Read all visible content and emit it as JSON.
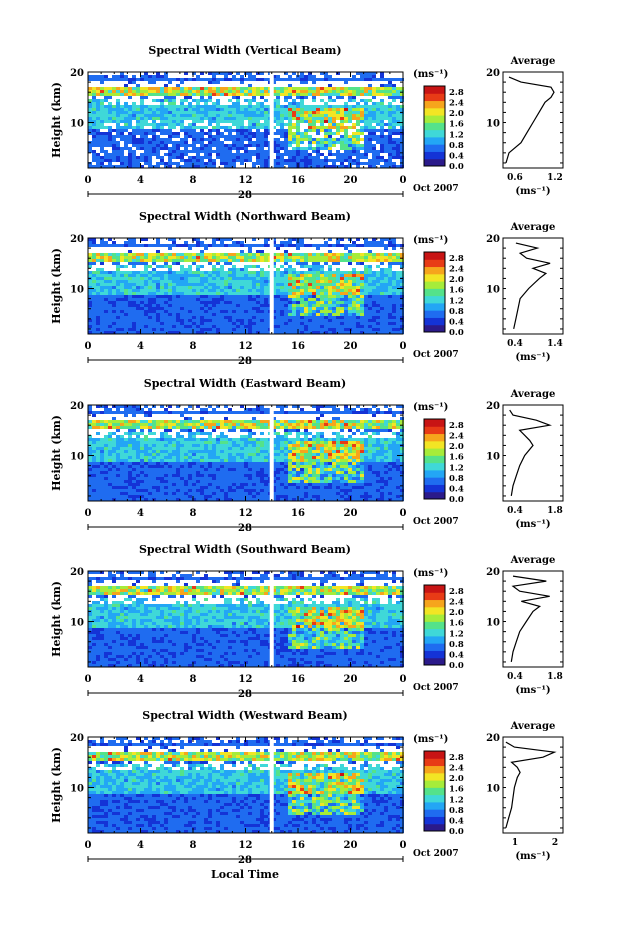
{
  "panels": [
    {
      "title": "Spectral Width (Vertical Beam)",
      "avg_xticks": [
        "0.6",
        "1.2"
      ]
    },
    {
      "title": "Spectral Width (Northward Beam)",
      "avg_xticks": [
        "0.4",
        "1.4"
      ]
    },
    {
      "title": "Spectral Width (Eastward Beam)",
      "avg_xticks": [
        "0.4",
        "1.8"
      ]
    },
    {
      "title": "Spectral Width (Southward Beam)",
      "avg_xticks": [
        "0.4",
        "1.8"
      ]
    },
    {
      "title": "Spectral Width (Westward Beam)",
      "avg_xticks": [
        "1",
        "2"
      ]
    }
  ],
  "common": {
    "ylabel": "Height (km)",
    "yticks": [
      "20",
      "10"
    ],
    "xticks": [
      "0",
      "4",
      "8",
      "12",
      "16",
      "20",
      "0"
    ],
    "day_label": "28",
    "month_label": "Oct 2007",
    "colorbar_unit": "(ms⁻¹)",
    "colorbar_ticks": [
      "2.8",
      "2.4",
      "2.0",
      "1.6",
      "1.2",
      "0.8",
      "0.4",
      "0.0"
    ],
    "average_title": "Average",
    "average_unit": "(ms⁻¹)",
    "xlabel": "Local Time"
  },
  "colors": {
    "colormap": [
      "#2b1a8a",
      "#1433d6",
      "#1f6cf0",
      "#23a6f5",
      "#3fd8d8",
      "#54e28a",
      "#a6ec3a",
      "#f2e524",
      "#f6a51c",
      "#e83b16",
      "#c81414"
    ],
    "gap": "#ffffff"
  },
  "chart_data": [
    {
      "type": "heatmap",
      "title": "Spectral Width (Vertical Beam)",
      "xlabel": "",
      "ylabel": "Height (km)",
      "xlim": [
        0,
        24
      ],
      "ylim": [
        1,
        20
      ],
      "colorbar_range": [
        0.0,
        3.0
      ],
      "data_gap_at_hour": 14,
      "average_profile": {
        "title": "Average",
        "unit": "(ms⁻¹)",
        "xlim": [
          0.4,
          1.4
        ],
        "height_km": [
          2,
          4,
          6,
          8,
          10,
          12,
          14,
          15,
          16,
          17,
          18,
          19
        ],
        "value": [
          0.45,
          0.5,
          0.7,
          0.8,
          0.9,
          1.0,
          1.1,
          1.2,
          1.25,
          1.2,
          0.7,
          0.5
        ]
      }
    },
    {
      "type": "heatmap",
      "title": "Spectral Width (Northward Beam)",
      "xlabel": "",
      "ylabel": "Height (km)",
      "xlim": [
        0,
        24
      ],
      "ylim": [
        1,
        20
      ],
      "colorbar_range": [
        0.0,
        3.0
      ],
      "data_gap_at_hour": 14,
      "average_profile": {
        "title": "Average",
        "unit": "(ms⁻¹)",
        "xlim": [
          0.2,
          1.6
        ],
        "height_km": [
          2,
          4,
          6,
          8,
          10,
          12,
          13,
          14,
          15,
          16,
          17,
          18,
          19
        ],
        "value": [
          0.45,
          0.5,
          0.55,
          0.6,
          0.8,
          1.05,
          1.2,
          0.9,
          1.3,
          0.75,
          0.6,
          1.0,
          0.5
        ]
      }
    },
    {
      "type": "heatmap",
      "title": "Spectral Width (Eastward Beam)",
      "xlabel": "",
      "ylabel": "Height (km)",
      "xlim": [
        0,
        24
      ],
      "ylim": [
        1,
        20
      ],
      "colorbar_range": [
        0.0,
        3.0
      ],
      "data_gap_at_hour": 14,
      "average_profile": {
        "title": "Average",
        "unit": "(ms⁻¹)",
        "xlim": [
          0.2,
          2.0
        ],
        "height_km": [
          2,
          4,
          6,
          8,
          10,
          12,
          13,
          14,
          15,
          16,
          17,
          18,
          19
        ],
        "value": [
          0.45,
          0.5,
          0.6,
          0.7,
          0.85,
          1.1,
          1.0,
          0.85,
          0.7,
          1.6,
          1.2,
          0.5,
          0.4
        ]
      }
    },
    {
      "type": "heatmap",
      "title": "Spectral Width (Southward Beam)",
      "xlabel": "",
      "ylabel": "Height (km)",
      "xlim": [
        0,
        24
      ],
      "ylim": [
        1,
        20
      ],
      "colorbar_range": [
        0.0,
        3.0
      ],
      "data_gap_at_hour": 14,
      "average_profile": {
        "title": "Average",
        "unit": "(ms⁻¹)",
        "xlim": [
          0.2,
          2.0
        ],
        "height_km": [
          2,
          4,
          6,
          8,
          10,
          12,
          13,
          14,
          15,
          16,
          17,
          18,
          19
        ],
        "value": [
          0.45,
          0.5,
          0.6,
          0.7,
          0.9,
          1.1,
          1.3,
          0.75,
          1.6,
          0.7,
          0.5,
          1.5,
          0.5
        ]
      }
    },
    {
      "type": "heatmap",
      "title": "Spectral Width (Westward Beam)",
      "xlabel": "Local Time",
      "ylabel": "Height (km)",
      "xlim": [
        0,
        24
      ],
      "ylim": [
        1,
        20
      ],
      "colorbar_range": [
        0.0,
        3.0
      ],
      "data_gap_at_hour": 14,
      "average_profile": {
        "title": "Average",
        "unit": "(ms⁻¹)",
        "xlim": [
          0.5,
          2.6
        ],
        "height_km": [
          2,
          4,
          6,
          8,
          10,
          12,
          13,
          14,
          15,
          16,
          17,
          18,
          19
        ],
        "value": [
          0.6,
          0.7,
          0.8,
          0.85,
          0.9,
          1.0,
          1.1,
          1.0,
          0.8,
          1.9,
          2.3,
          0.9,
          0.6
        ]
      }
    }
  ]
}
